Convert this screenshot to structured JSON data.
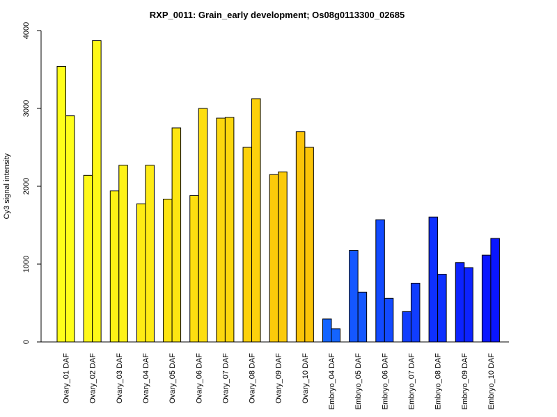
{
  "chart_data": {
    "type": "bar",
    "title": "RXP_0011: Grain_early development; Os08g0113300_02685",
    "xlabel": "",
    "ylabel": "Cy3 signal intensity",
    "ylim": [
      0,
      4000
    ],
    "yticks": [
      0,
      1000,
      2000,
      3000,
      4000
    ],
    "grid": false,
    "categories": [
      "Ovary_01 DAF",
      "Ovary_02 DAF",
      "Ovary_03 DAF",
      "Ovary_04 DAF",
      "Ovary_05 DAF",
      "Ovary_06 DAF",
      "Ovary_07 DAF",
      "Ovary_08 DAF",
      "Ovary_09 DAF",
      "Ovary_10 DAF",
      "Embryo_04 DAF",
      "Embryo_05 DAF",
      "Embryo_06 DAF",
      "Embryo_07 DAF",
      "Embryo_08 DAF",
      "Embryo_09 DAF",
      "Embryo_10 DAF"
    ],
    "series": [
      {
        "values": [
          3540,
          2140,
          1940,
          1775,
          1835,
          1880,
          2875,
          2500,
          2150,
          2700,
          295,
          1175,
          1570,
          390,
          1605,
          1020,
          1115
        ]
      },
      {
        "values": [
          2905,
          3870,
          2270,
          2270,
          2750,
          3000,
          2885,
          3125,
          2185,
          2500,
          170,
          640,
          560,
          755,
          870,
          955,
          1330
        ]
      }
    ],
    "colors": [
      "#FFFF1A",
      "#FEF818",
      "#FEF216",
      "#FEEB14",
      "#FDE512",
      "#FDDE10",
      "#FCD70E",
      "#FCD10C",
      "#FBCA0A",
      "#FBC408",
      "#1464FF",
      "#1457FF",
      "#124AFF",
      "#103DFF",
      "#0E30FF",
      "#0C23FF",
      "#0A16FF"
    ]
  }
}
